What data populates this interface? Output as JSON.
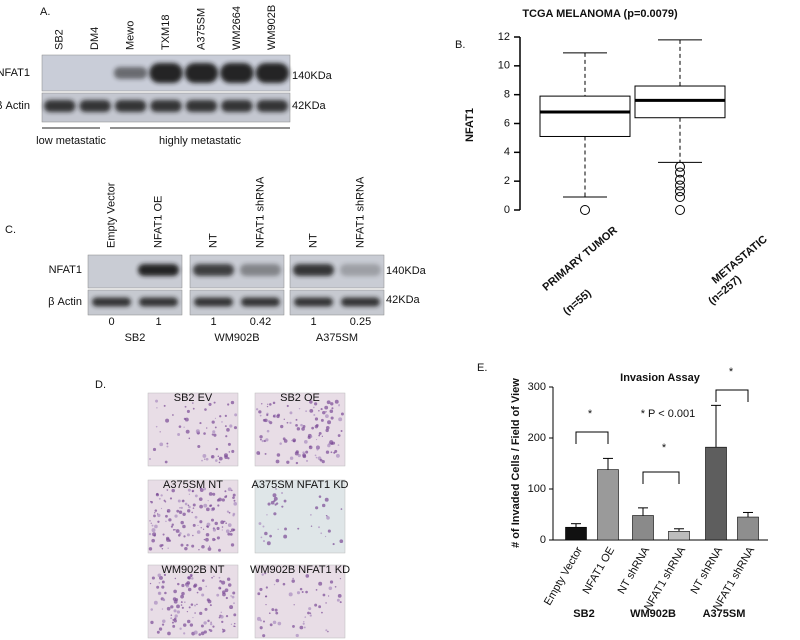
{
  "panel_labels": [
    "A.",
    "B.",
    "C.",
    "D.",
    "E."
  ],
  "blot_a": {
    "lanes": [
      "SB2",
      "DM4",
      "Mewo",
      "TXM18",
      "A375SM",
      "WM2664",
      "WM902B"
    ],
    "rows": [
      "NFAT1",
      "β Actin"
    ],
    "sizes": [
      "140KDa",
      "42KDa"
    ],
    "groups": [
      "low metastatic",
      "highly metastatic"
    ]
  },
  "blot_c": {
    "rows": [
      "NFAT1",
      "β Actin"
    ],
    "sizes": [
      "140KDa",
      "42KDa"
    ],
    "groups": [
      {
        "lanes": [
          "Empty Vector",
          "NFAT1 OE"
        ],
        "quantification": [
          0,
          1
        ],
        "cell_line": "SB2"
      },
      {
        "lanes": [
          "NT",
          "NFAT1 shRNA"
        ],
        "quantification": [
          1,
          0.42
        ],
        "cell_line": "WM902B"
      },
      {
        "lanes": [
          "NT",
          "NFAT1 shRNA"
        ],
        "quantification": [
          1,
          0.25
        ],
        "cell_line": "A375SM"
      }
    ]
  },
  "images": {
    "labels": [
      "SB2 EV",
      "SB2 OE",
      "A375SM NT",
      "A375SM NFAT1 KD",
      "WM902B NT",
      "WM902B NFAT1 KD"
    ]
  },
  "chart_data": [
    {
      "type": "box",
      "title": "TCGA MELANOMA (p=0.0079)",
      "ylabel": "NFAT1",
      "categories": [
        "PRIMARY TUMOR",
        "METASTATIC"
      ],
      "category_counts": [
        "(n=55)",
        "(n=257)"
      ],
      "boxes": [
        {
          "whisker_low": 0.9,
          "q1": 5.1,
          "median": 6.8,
          "q3": 7.9,
          "whisker_high": 10.9,
          "outliers": [
            0
          ]
        },
        {
          "whisker_low": 3.3,
          "q1": 6.4,
          "median": 7.6,
          "q3": 8.6,
          "whisker_high": 11.8,
          "outliers": [
            3.0,
            2.6,
            2.1,
            1.7,
            1.3,
            0.9,
            0
          ]
        }
      ],
      "ylim": [
        0,
        12
      ],
      "yticks": [
        0,
        2,
        4,
        6,
        8,
        10,
        12
      ]
    },
    {
      "type": "bar",
      "title": "Invasion Assay",
      "ylabel": "# of Invaded Cells / Field of View",
      "categories": [
        "Empty Vector",
        "NFAT1 OE",
        "NT shRNA",
        "NFAT1 shRNA",
        "NT shRNA",
        "NFAT1 shRNA"
      ],
      "values": [
        25,
        138,
        48,
        17,
        182,
        45
      ],
      "errors": [
        7,
        22,
        15,
        5,
        82,
        9
      ],
      "colors": [
        "#111111",
        "#9a9a9a",
        "#8a8a8a",
        "#bdbdbd",
        "#5e5e5e",
        "#8e8e8e"
      ],
      "groups": [
        "SB2",
        "WM902B",
        "A375SM"
      ],
      "annotations": [
        "*",
        "*",
        "*",
        "* P < 0.001"
      ],
      "ylim": [
        0,
        300
      ],
      "yticks": [
        0,
        100,
        200,
        300
      ]
    }
  ]
}
